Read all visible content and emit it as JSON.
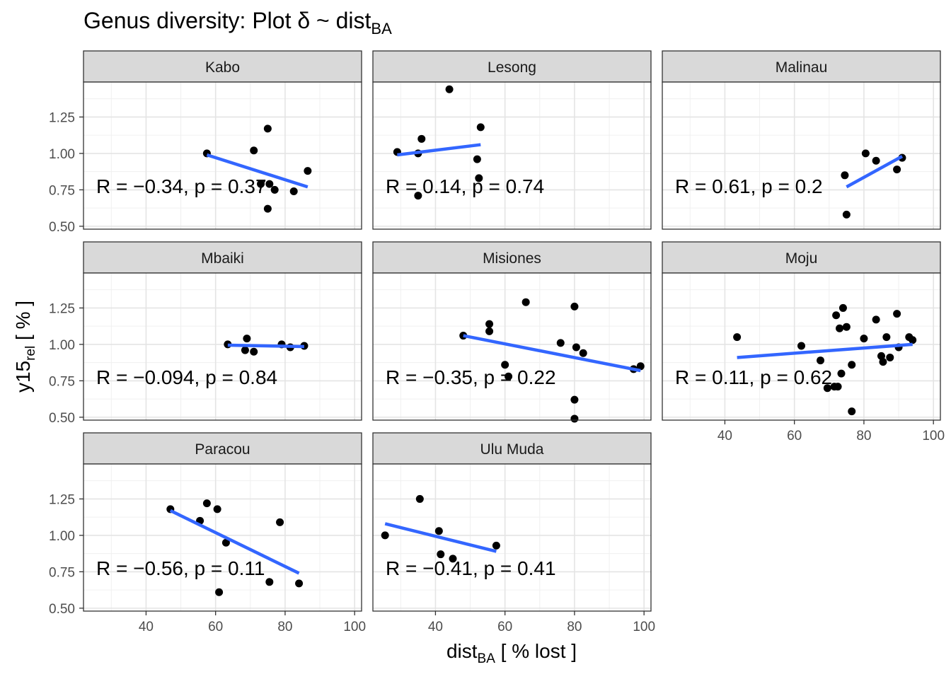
{
  "title": {
    "main": "Genus diversity: Plot δ ~ dist",
    "sub": "BA"
  },
  "xlabel": {
    "main": "dist",
    "sub": "BA",
    "rest": " [ % lost ]"
  },
  "ylabel": {
    "main": "y15",
    "sub": "rel",
    "rest": " [ % ]"
  },
  "chart_data": {
    "type": "scatter",
    "facet_layout": "3 columns, 3 rows",
    "xlim": [
      22,
      102
    ],
    "ylim": [
      0.48,
      1.49
    ],
    "x_ticks": [
      "40",
      "60",
      "80",
      "100"
    ],
    "y_ticks": [
      "0.50",
      "0.75",
      "1.00",
      "1.25"
    ],
    "x_tick_values": [
      40,
      60,
      80,
      100
    ],
    "y_tick_values": [
      0.5,
      0.75,
      1.0,
      1.25
    ],
    "grid": true,
    "point_color": "#000000",
    "line_color": "#3366FF",
    "strip_color": "#D9D9D9",
    "panels": [
      {
        "name": "Kabo",
        "points": [
          [
            57.5,
            1.0
          ],
          [
            71,
            1.02
          ],
          [
            75,
            1.17
          ],
          [
            73,
            0.79
          ],
          [
            75.5,
            0.79
          ],
          [
            77,
            0.75
          ],
          [
            82.5,
            0.74
          ],
          [
            86.5,
            0.88
          ],
          [
            75,
            0.62
          ]
        ],
        "fit": [
          [
            57.5,
            0.99
          ],
          [
            86.5,
            0.77
          ]
        ],
        "stat": "R = −0.34, p = 0.37"
      },
      {
        "name": "Lesong",
        "points": [
          [
            29,
            1.01
          ],
          [
            35,
            1.0
          ],
          [
            36,
            1.1
          ],
          [
            44,
            1.44
          ],
          [
            52,
            0.96
          ],
          [
            52.5,
            0.83
          ],
          [
            53,
            1.18
          ],
          [
            35,
            0.71
          ]
        ],
        "fit": [
          [
            29,
            0.99
          ],
          [
            53,
            1.06
          ]
        ],
        "stat": "R = 0.14, p = 0.74"
      },
      {
        "name": "Malinau",
        "points": [
          [
            74.5,
            0.85
          ],
          [
            75,
            0.58
          ],
          [
            80.5,
            1.0
          ],
          [
            83.5,
            0.95
          ],
          [
            89.5,
            0.89
          ],
          [
            91,
            0.97
          ]
        ],
        "fit": [
          [
            75,
            0.77
          ],
          [
            91,
            0.98
          ]
        ],
        "stat": "R = 0.61, p = 0.2"
      },
      {
        "name": "Mbaiki",
        "points": [
          [
            63.5,
            1.0
          ],
          [
            68.5,
            0.96
          ],
          [
            69,
            1.04
          ],
          [
            71,
            0.95
          ],
          [
            79,
            1.0
          ],
          [
            81.5,
            0.98
          ],
          [
            85.5,
            0.99
          ]
        ],
        "fit": [
          [
            63.5,
            0.995
          ],
          [
            85.5,
            0.985
          ]
        ],
        "stat": "R = −0.094, p = 0.84"
      },
      {
        "name": "Misiones",
        "points": [
          [
            48,
            1.06
          ],
          [
            55.5,
            1.14
          ],
          [
            55.5,
            1.09
          ],
          [
            60,
            0.86
          ],
          [
            61,
            0.78
          ],
          [
            66,
            1.29
          ],
          [
            76,
            1.01
          ],
          [
            80,
            1.26
          ],
          [
            80.5,
            0.98
          ],
          [
            82.5,
            0.94
          ],
          [
            80,
            0.62
          ],
          [
            80,
            0.49
          ],
          [
            97,
            0.83
          ],
          [
            99,
            0.85
          ]
        ],
        "fit": [
          [
            48,
            1.06
          ],
          [
            99,
            0.82
          ]
        ],
        "stat": "R = −0.35, p = 0.22"
      },
      {
        "name": "Moju",
        "points": [
          [
            43.5,
            1.05
          ],
          [
            62,
            0.99
          ],
          [
            67.5,
            0.89
          ],
          [
            69.5,
            0.7
          ],
          [
            71.5,
            0.71
          ],
          [
            72,
            1.2
          ],
          [
            72.5,
            0.71
          ],
          [
            73,
            1.11
          ],
          [
            73.5,
            0.8
          ],
          [
            74,
            1.25
          ],
          [
            75,
            1.12
          ],
          [
            76.5,
            0.86
          ],
          [
            76.5,
            0.54
          ],
          [
            80,
            1.04
          ],
          [
            83.5,
            1.17
          ],
          [
            85,
            0.92
          ],
          [
            85.5,
            0.88
          ],
          [
            86.5,
            1.05
          ],
          [
            87.5,
            0.91
          ],
          [
            89.5,
            1.21
          ],
          [
            90,
            0.98
          ],
          [
            93,
            1.05
          ],
          [
            94,
            1.03
          ]
        ],
        "fit": [
          [
            43.5,
            0.91
          ],
          [
            94,
            1.0
          ]
        ],
        "stat": "R = 0.11, p = 0.62"
      },
      {
        "name": "Paracou",
        "points": [
          [
            47,
            1.18
          ],
          [
            55.5,
            1.1
          ],
          [
            57.5,
            1.22
          ],
          [
            60.5,
            1.18
          ],
          [
            63,
            0.95
          ],
          [
            61,
            0.61
          ],
          [
            75.5,
            0.68
          ],
          [
            78.5,
            1.09
          ],
          [
            84,
            0.67
          ]
        ],
        "fit": [
          [
            47,
            1.17
          ],
          [
            84,
            0.74
          ]
        ],
        "stat": "R = −0.56, p = 0.11"
      },
      {
        "name": "Ulu Muda",
        "points": [
          [
            25.5,
            1.0
          ],
          [
            35.5,
            1.25
          ],
          [
            41,
            1.03
          ],
          [
            41.5,
            0.87
          ],
          [
            45,
            0.84
          ],
          [
            57.5,
            0.93
          ]
        ],
        "fit": [
          [
            25.5,
            1.08
          ],
          [
            57.5,
            0.89
          ]
        ],
        "stat": "R = −0.41, p = 0.41"
      }
    ]
  }
}
